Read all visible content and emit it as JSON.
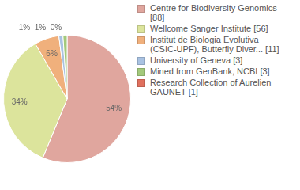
{
  "chart_data": {
    "type": "pie",
    "categories": [
      "Centre for Biodiversity Genomics [88]",
      "Wellcome Sanger Institute [56]",
      "Institut de Biologia Evolutiva (CSIC-UPF), Butterfly Diver... [11]",
      "University of Geneva [3]",
      "Mined from GenBank, NCBI [3]",
      "Research Collection of Aurelien GAUNET [1]"
    ],
    "values": [
      54,
      34,
      6,
      1,
      1,
      0
    ],
    "value_labels": [
      "54%",
      "34%",
      "6%",
      "1%",
      "1%",
      "0%"
    ],
    "colors": [
      "#e0a69e",
      "#dce49c",
      "#f0b07c",
      "#a9c2e2",
      "#a3c97c",
      "#e0705e"
    ],
    "data_labels": true,
    "legend": "right"
  }
}
